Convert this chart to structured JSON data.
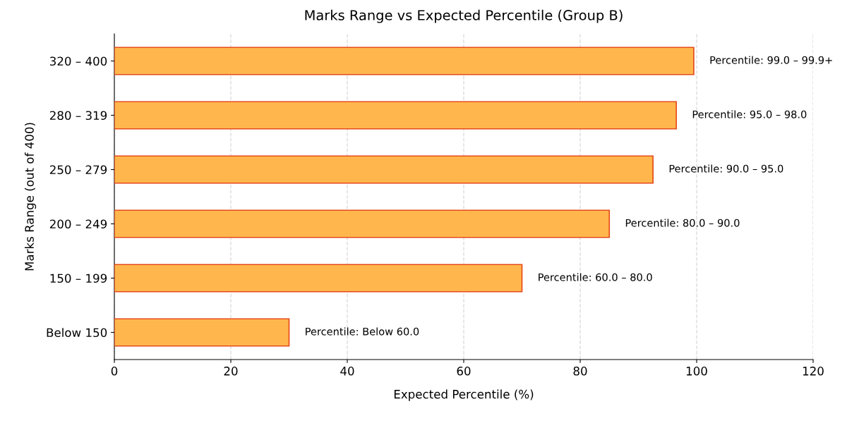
{
  "chart_data": {
    "type": "bar",
    "orientation": "horizontal",
    "title": "Marks Range vs Expected Percentile (Group B)",
    "xlabel": "Expected Percentile (%)",
    "ylabel": "Marks Range (out of 400)",
    "categories": [
      "320 – 400",
      "280 – 319",
      "250 – 279",
      "200 – 249",
      "150 – 199",
      "Below 150"
    ],
    "values": [
      99.5,
      96.5,
      92.5,
      85,
      70,
      30
    ],
    "value_labels": [
      "Percentile: 99.0 – 99.9+",
      "Percentile: 95.0 – 98.0",
      "Percentile: 90.0 – 95.0",
      "Percentile: 80.0 – 90.0",
      "Percentile: 60.0 – 80.0",
      "Percentile: Below 60.0"
    ],
    "color": "#ffb74d",
    "xlim": [
      0,
      120
    ],
    "xticks": [
      0,
      20,
      40,
      60,
      80,
      100,
      120
    ],
    "grid": "x"
  }
}
